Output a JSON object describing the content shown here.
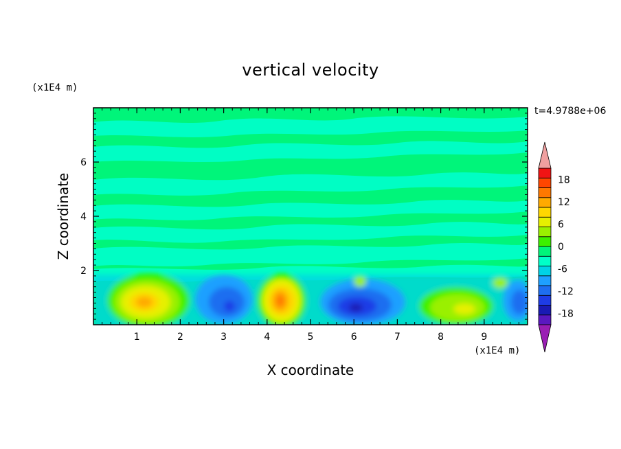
{
  "chart_data": {
    "type": "heatmap",
    "title": "vertical velocity",
    "xlabel": "X coordinate",
    "ylabel": "Z coordinate",
    "x_units": "(x1E4 m)",
    "z_units": "(x1E4 m)",
    "time_label": "t=4.9788e+06",
    "xlim": [
      0,
      10
    ],
    "ylim": [
      0,
      8
    ],
    "x_ticks": [
      "1",
      "2",
      "3",
      "4",
      "5",
      "6",
      "7",
      "8",
      "9"
    ],
    "y_ticks": [
      "2",
      "4",
      "6"
    ],
    "colorbar": {
      "tick_labels": [
        "18",
        "12",
        "6",
        "0",
        "-6",
        "-12",
        "-18"
      ],
      "range": [
        -21,
        21
      ],
      "colors": [
        "#9a1eb4",
        "#5a18c0",
        "#1a1ab4",
        "#1e3ce6",
        "#1e6ef0",
        "#1ea0ff",
        "#00d2e6",
        "#00ffc8",
        "#00f57a",
        "#3cf000",
        "#9af000",
        "#e6f000",
        "#ffd700",
        "#ffaa00",
        "#ff7800",
        "#ff4600",
        "#f01414",
        "#f0a0a0"
      ],
      "extend": "both"
    },
    "features": [
      {
        "x": 1.3,
        "z": 0.9,
        "value": 12
      },
      {
        "x": 3.1,
        "z": 0.8,
        "value": -12
      },
      {
        "x": 4.3,
        "z": 0.9,
        "value": 14
      },
      {
        "x": 6.1,
        "z": 0.7,
        "value": -15
      },
      {
        "x": 8.3,
        "z": 0.7,
        "value": 7
      },
      {
        "x": 9.7,
        "z": 0.8,
        "value": -12
      }
    ]
  }
}
